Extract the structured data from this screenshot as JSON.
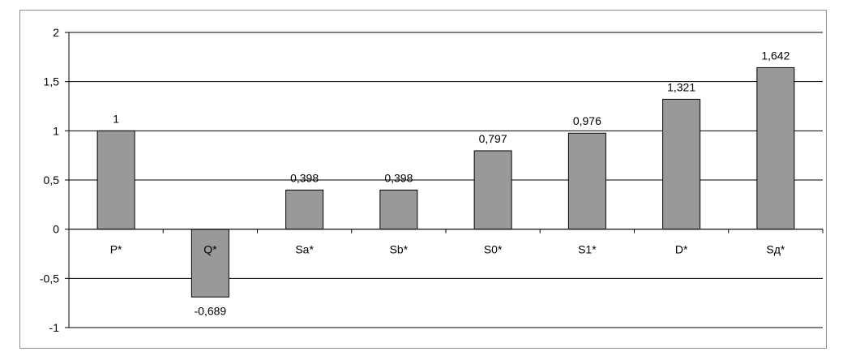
{
  "chart_data": {
    "type": "bar",
    "title": "",
    "xlabel": "",
    "ylabel": "",
    "categories": [
      "P*",
      "Q*",
      "Sa*",
      "Sb*",
      "S0*",
      "S1*",
      "D*",
      "Sд*"
    ],
    "values": [
      1,
      -0.689,
      0.398,
      0.398,
      0.797,
      0.976,
      1.321,
      1.642
    ],
    "value_labels": [
      "1",
      "-0,689",
      "0,398",
      "0,398",
      "0,797",
      "0,976",
      "1,321",
      "1,642"
    ],
    "ylim": [
      -1,
      2
    ],
    "yticks": [
      -1,
      -0.5,
      0,
      0.5,
      1,
      1.5,
      2
    ],
    "ytick_labels": [
      "-1",
      "-0,5",
      "0",
      "0,5",
      "1",
      "1,5",
      "2"
    ],
    "grid": true,
    "legend": "none",
    "bar_color": "#999999",
    "bar_edge_color": "#000000"
  }
}
